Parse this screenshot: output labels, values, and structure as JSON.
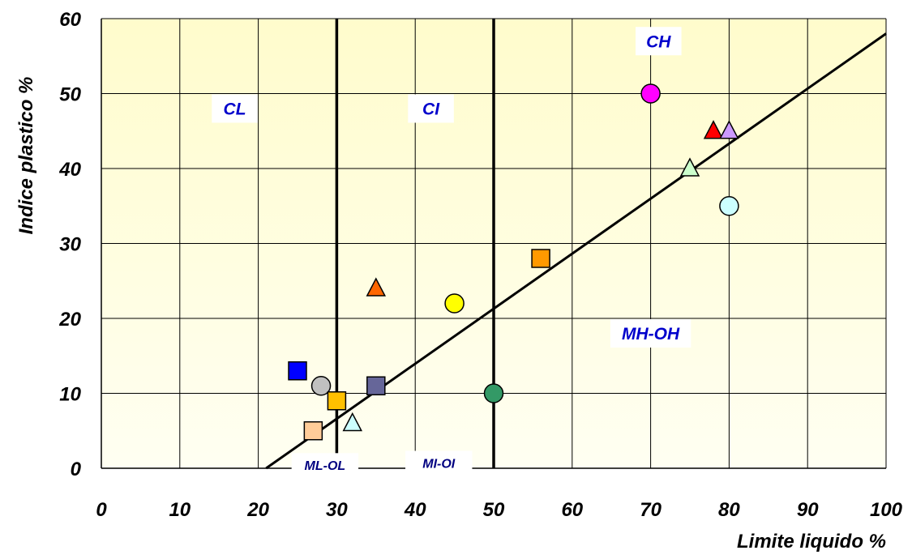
{
  "chart_data": {
    "type": "scatter",
    "xlabel": "Limite liquido %",
    "ylabel": "Indice plastico %",
    "xlim": [
      0,
      100
    ],
    "ylim": [
      0,
      60
    ],
    "x_ticks": [
      0,
      10,
      20,
      30,
      40,
      50,
      60,
      70,
      80,
      90,
      100
    ],
    "y_ticks": [
      0,
      10,
      20,
      30,
      40,
      50,
      60
    ],
    "grid": true,
    "background": "light yellow gradient",
    "vertical_boundaries": [
      30,
      50
    ],
    "a_line": {
      "from": [
        21,
        0
      ],
      "to": [
        100,
        58
      ]
    },
    "zone_labels": [
      {
        "text": "CL",
        "x": 17,
        "y": 48
      },
      {
        "text": "CI",
        "x": 42,
        "y": 48
      },
      {
        "text": "CH",
        "x": 71,
        "y": 57
      },
      {
        "text": "MH-OH",
        "x": 70,
        "y": 18
      },
      {
        "text": "ML-OL",
        "x": 28.5,
        "y": 0.4
      },
      {
        "text": "MI-OI",
        "x": 43,
        "y": 0.7
      }
    ],
    "points": [
      {
        "x": 25,
        "y": 13,
        "marker": "square",
        "color": "#0000ff"
      },
      {
        "x": 28,
        "y": 11,
        "marker": "circle",
        "color": "#c0c0c0"
      },
      {
        "x": 30,
        "y": 9,
        "marker": "square",
        "color": "#ffc000"
      },
      {
        "x": 27,
        "y": 5,
        "marker": "square",
        "color": "#ffcc99"
      },
      {
        "x": 32,
        "y": 6,
        "marker": "triangle",
        "color": "#ccffff"
      },
      {
        "x": 35,
        "y": 11,
        "marker": "square",
        "color": "#666699"
      },
      {
        "x": 35,
        "y": 24,
        "marker": "triangle",
        "color": "#ff6600"
      },
      {
        "x": 45,
        "y": 22,
        "marker": "circle",
        "color": "#ffff00"
      },
      {
        "x": 50,
        "y": 10,
        "marker": "circle",
        "color": "#339966"
      },
      {
        "x": 56,
        "y": 28,
        "marker": "square",
        "color": "#ff9900"
      },
      {
        "x": 70,
        "y": 50,
        "marker": "circle",
        "color": "#ff00ff"
      },
      {
        "x": 75,
        "y": 40,
        "marker": "triangle",
        "color": "#ccffcc"
      },
      {
        "x": 78,
        "y": 45,
        "marker": "triangle",
        "color": "#ff0000"
      },
      {
        "x": 80,
        "y": 45,
        "marker": "triangle",
        "color": "#cc99ff"
      },
      {
        "x": 80,
        "y": 35,
        "marker": "circle",
        "color": "#ccffff"
      }
    ],
    "colors": {
      "zone_text": "#0000cc",
      "zone_text_dark": "#000080",
      "grid": "#000000",
      "background_top": "#fffccc",
      "background_bottom": "#fffff2"
    }
  }
}
